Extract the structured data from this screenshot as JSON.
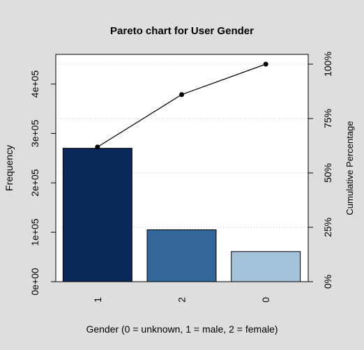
{
  "chart_data": {
    "type": "bar",
    "title": "Pareto chart for User Gender",
    "xlabel": "Gender (0 = unknown, 1 = male, 2 = female)",
    "ylabel": "Frequency",
    "y2label": "Cumulative Percentage",
    "categories": [
      "1",
      "2",
      "0"
    ],
    "values": [
      270000,
      105000,
      61000
    ],
    "cumulative_percent": [
      61.9,
      86.0,
      100.0
    ],
    "ylim": [
      0,
      460000
    ],
    "y_ticks": [
      0,
      100000,
      200000,
      300000,
      400000
    ],
    "y_tick_labels": [
      "0e+00",
      "1e+05",
      "2e+05",
      "3e+05",
      "4e+05"
    ],
    "y2_ticks": [
      0,
      25,
      50,
      75,
      100
    ],
    "y2_tick_labels": [
      "0%",
      "25%",
      "50%",
      "75%",
      "100%"
    ],
    "bar_colors": [
      "#08295a",
      "#33679a",
      "#a5c2db"
    ],
    "line_color": "#000000",
    "grid": "horizontal-dotted"
  }
}
